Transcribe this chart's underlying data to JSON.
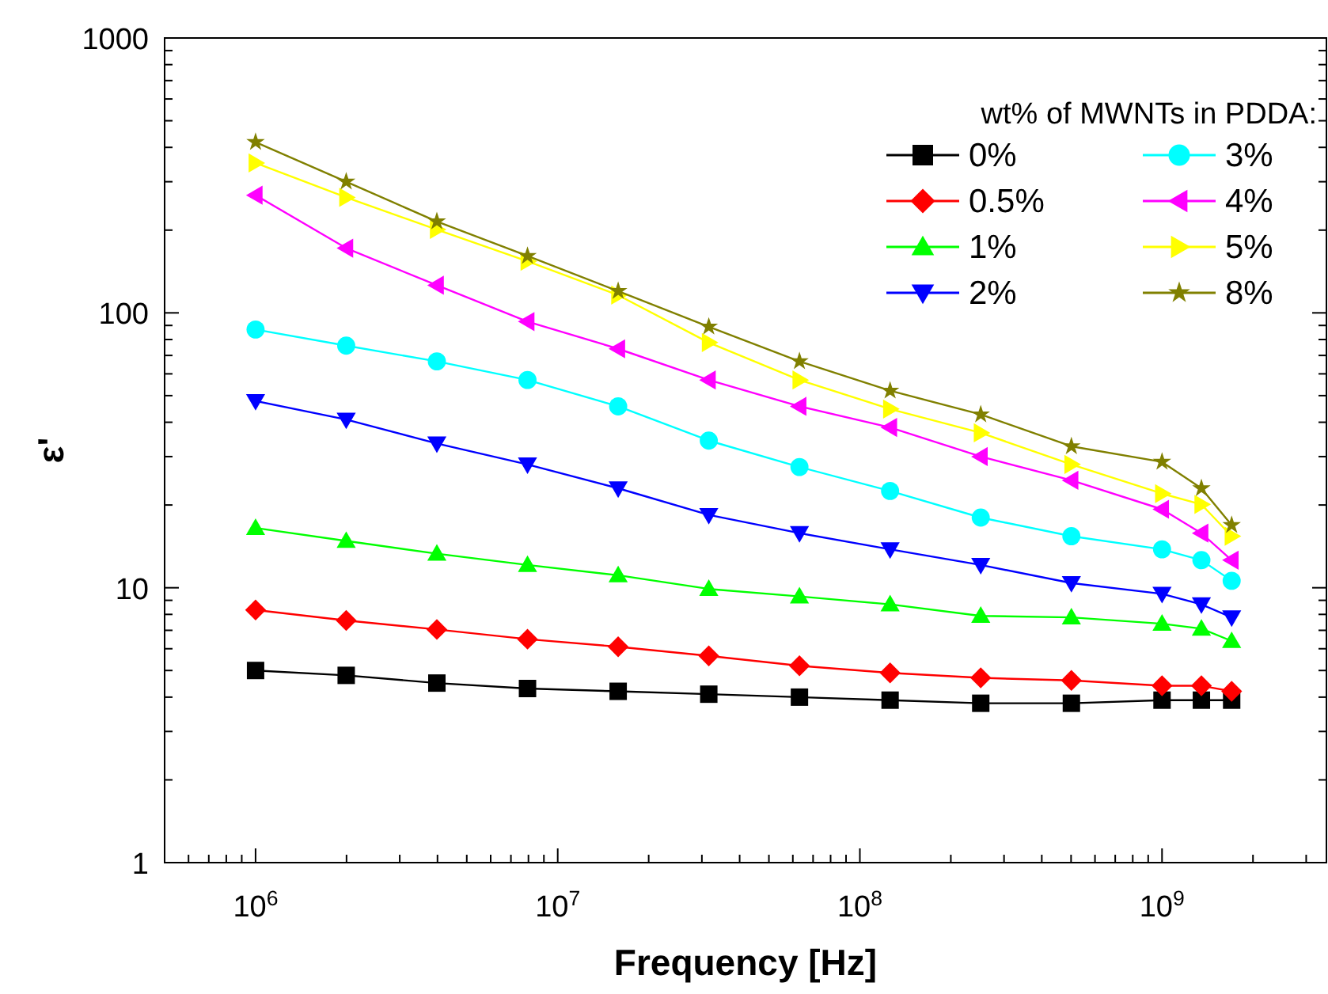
{
  "chart_data": {
    "type": "line",
    "xlabel": "Frequency [Hz]",
    "ylabel": "ε'",
    "legend_title": "wt% of MWNTs in PDDA:",
    "log": "xy",
    "grid": false,
    "legend": "top right",
    "line_style": "solid",
    "x": [
      1000000,
      1995000,
      3981000,
      7943000,
      15850000,
      31620000,
      63100000,
      125900000,
      251200000,
      501200000,
      1000000000,
      1350000000,
      1700000000
    ],
    "xlim": [
      500000,
      3500000000
    ],
    "ylim": [
      1,
      1000
    ],
    "xticks": [
      {
        "value": 1000000,
        "label": "10$^{6}$"
      },
      {
        "value": 10000000,
        "label": "10$^{7}$"
      },
      {
        "value": 100000000,
        "label": "10$^{8}$"
      },
      {
        "value": 1000000000,
        "label": "10$^{9}$"
      }
    ],
    "yticks": [
      1,
      10,
      100,
      1000
    ],
    "series": [
      {
        "name": "0%",
        "color": "#000000",
        "marker": "square",
        "values": [
          5.0,
          4.8,
          4.5,
          4.3,
          4.2,
          4.1,
          4.0,
          3.9,
          3.8,
          3.8,
          3.9,
          3.9,
          3.9
        ]
      },
      {
        "name": "0.5%",
        "color": "#ff0000",
        "marker": "diamond",
        "values": [
          8.3,
          7.6,
          7.05,
          6.5,
          6.1,
          5.65,
          5.2,
          4.9,
          4.7,
          4.6,
          4.4,
          4.4,
          4.2
        ]
      },
      {
        "name": "1%",
        "color": "#00ff00",
        "marker": "triangle",
        "values": [
          16.5,
          14.8,
          13.3,
          12.1,
          11.1,
          9.9,
          9.3,
          8.7,
          7.9,
          7.8,
          7.4,
          7.1,
          6.4
        ]
      },
      {
        "name": "2%",
        "color": "#0000ff",
        "marker": "triangle-down",
        "values": [
          47.8,
          40.9,
          33.5,
          28.1,
          23.0,
          18.4,
          15.8,
          13.8,
          12.1,
          10.4,
          9.5,
          8.7,
          7.8
        ]
      },
      {
        "name": "3%",
        "color": "#00ffff",
        "marker": "circle",
        "values": [
          87,
          76,
          66.6,
          57,
          45.7,
          34.3,
          27.5,
          22.5,
          18.0,
          15.4,
          13.8,
          12.6,
          10.6
        ]
      },
      {
        "name": "4%",
        "color": "#ff00ff",
        "marker": "triangle-left",
        "values": [
          268,
          172,
          126,
          93,
          74,
          57,
          45.7,
          38.3,
          30.0,
          24.6,
          19.3,
          15.8,
          12.6
        ]
      },
      {
        "name": "5%",
        "color": "#ffff00",
        "marker": "triangle-right",
        "values": [
          351,
          263,
          201,
          154,
          116,
          78,
          57,
          44.7,
          36.6,
          28.1,
          22.0,
          20.1,
          15.4
        ]
      },
      {
        "name": "8%",
        "color": "#808000",
        "marker": "star",
        "values": [
          418,
          300,
          215,
          161,
          120,
          89,
          66.6,
          52.1,
          42.7,
          32.7,
          28.7,
          23.0,
          16.9
        ]
      }
    ]
  }
}
